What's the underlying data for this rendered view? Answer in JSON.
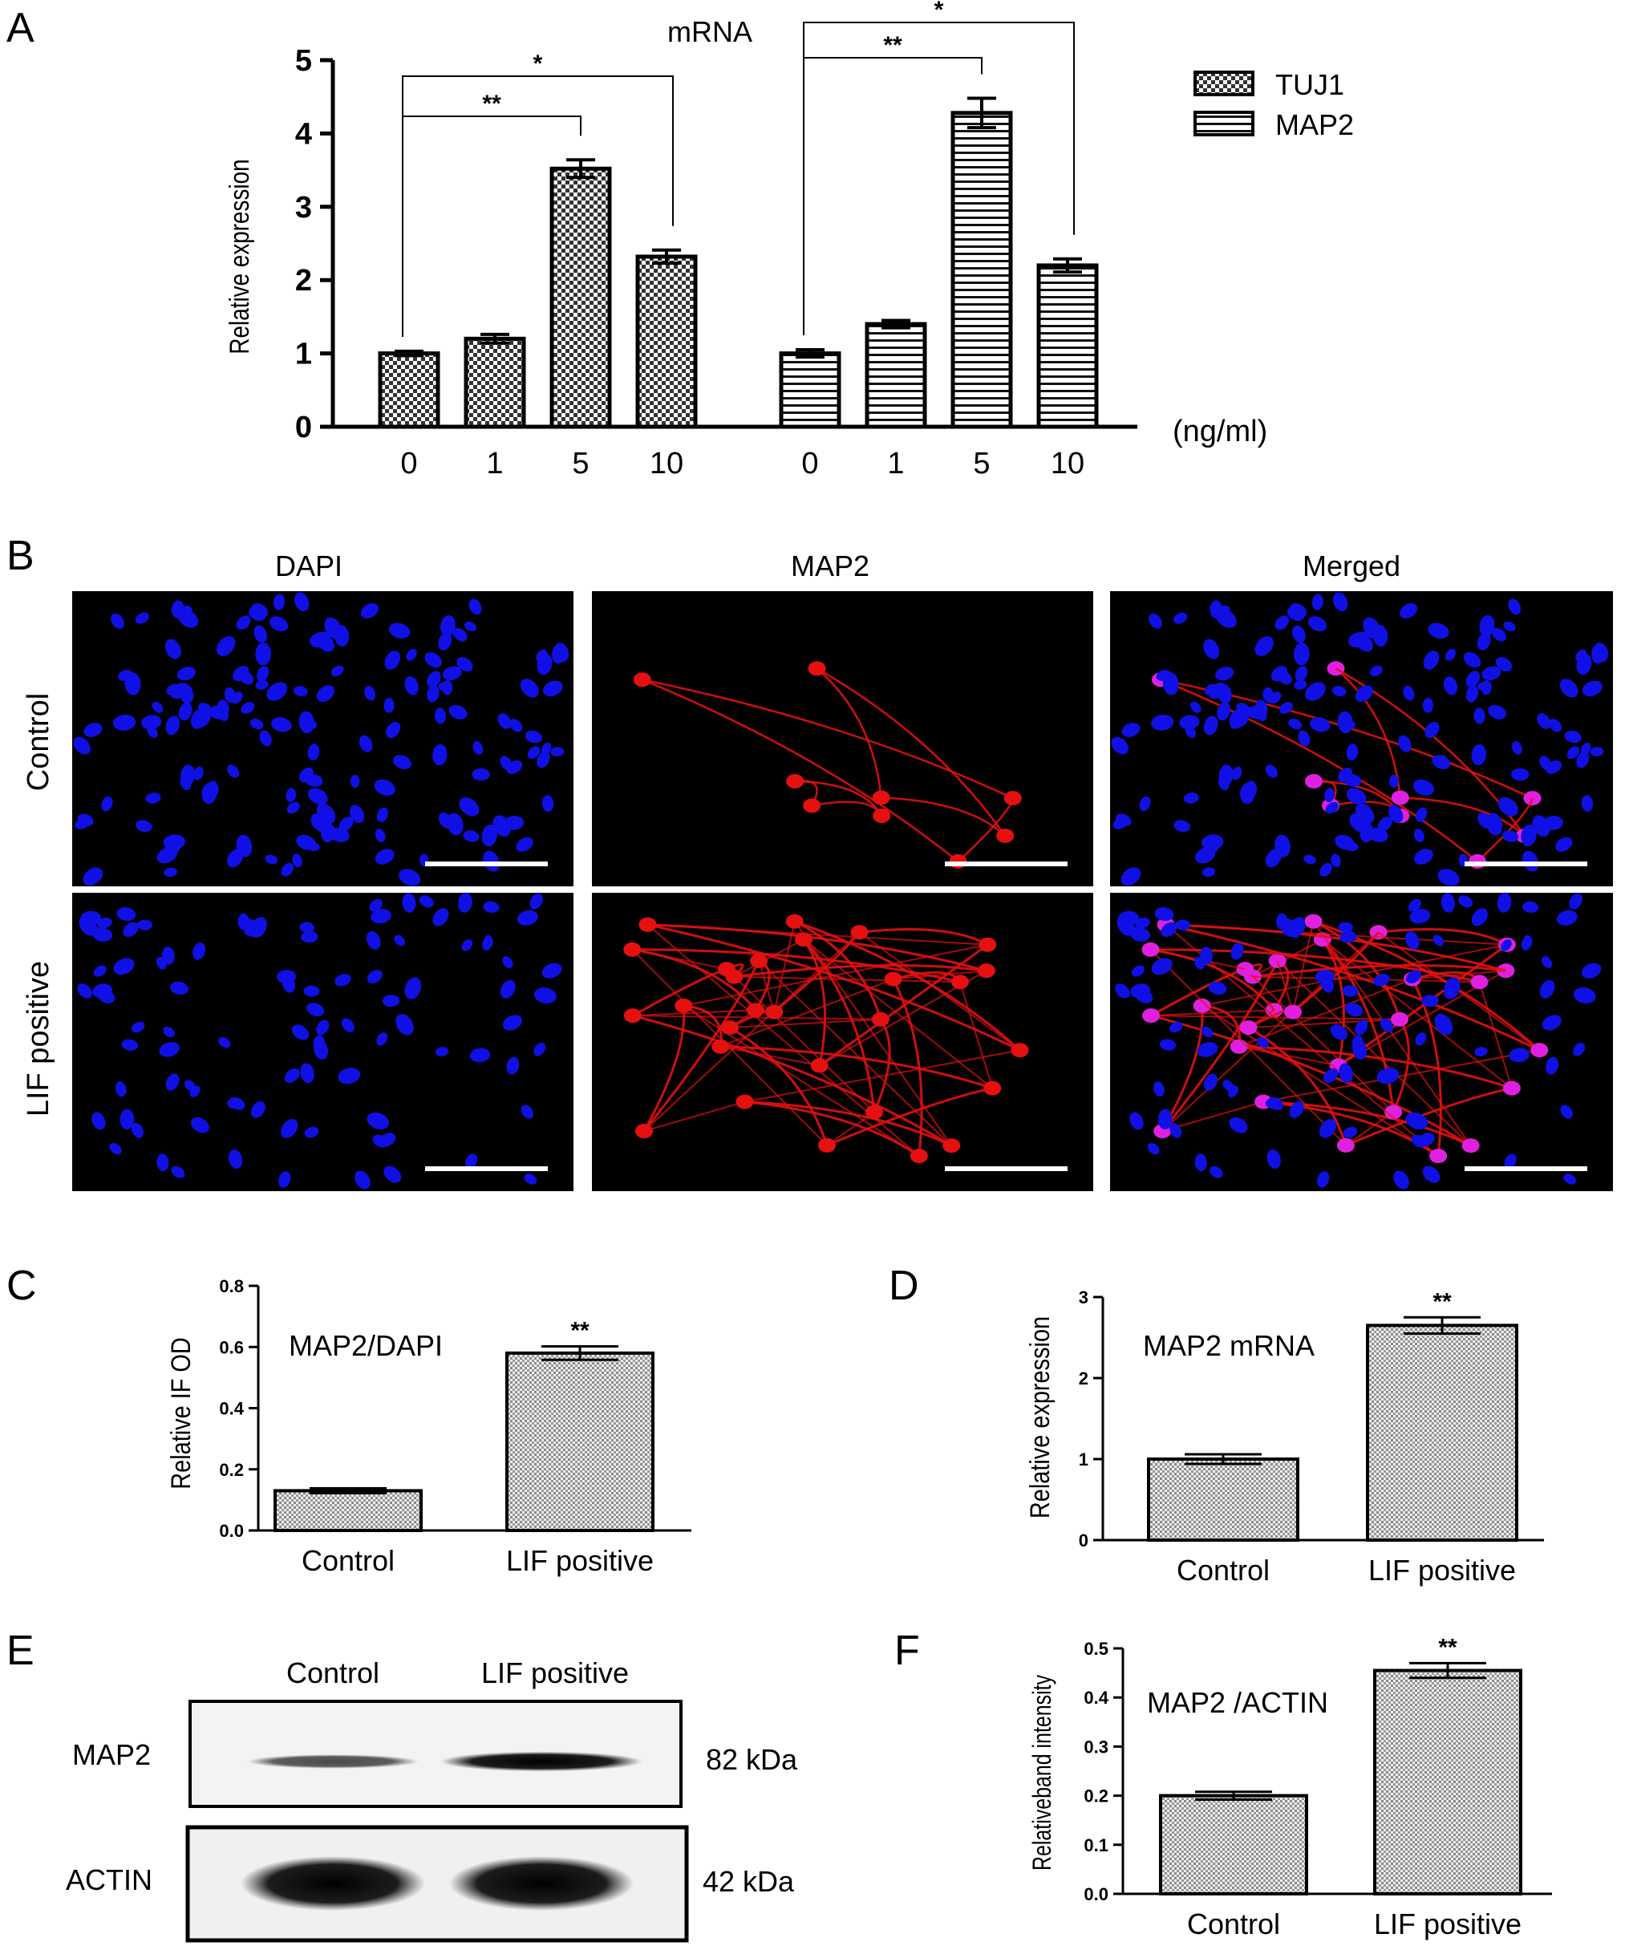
{
  "panels": {
    "A": {
      "letter": "A"
    },
    "B": {
      "letter": "B",
      "columns": [
        "DAPI",
        "MAP2",
        "Merged"
      ],
      "rows": [
        "Control",
        "LIF positive"
      ]
    },
    "C": {
      "letter": "C"
    },
    "D": {
      "letter": "D"
    },
    "E": {
      "letter": "E",
      "lane_labels": [
        "Control",
        "LIF positive"
      ],
      "bands": [
        {
          "label": "MAP2",
          "size": "82 kDa",
          "intensity": [
            0.35,
            0.85
          ]
        },
        {
          "label": "ACTIN",
          "size": "42 kDa",
          "intensity": [
            1.0,
            1.0
          ]
        }
      ]
    },
    "F": {
      "letter": "F"
    }
  },
  "colors": {
    "dapi": "#1010e6",
    "map2_stain": "#e61010",
    "merged_overlap": "#e020e0",
    "bar_edge": "#000000"
  },
  "chart_data": [
    {
      "id": "A",
      "type": "bar",
      "title": "mRNA",
      "ylabel": "Relative expression",
      "xlabel": "",
      "unit_label": "(ng/ml)",
      "ylim": [
        0,
        5
      ],
      "yticks": [
        "0",
        "1",
        "2",
        "3",
        "4",
        "5"
      ],
      "categories": [
        "0",
        "1",
        "5",
        "10"
      ],
      "legend_position": "top-right",
      "series": [
        {
          "name": "TUJ1",
          "pattern": "checker",
          "values": [
            1.0,
            1.2,
            3.52,
            2.32
          ],
          "errors": [
            0.03,
            0.06,
            0.12,
            0.09
          ]
        },
        {
          "name": "MAP2",
          "pattern": "hstripe",
          "values": [
            1.0,
            1.4,
            4.28,
            2.2
          ],
          "errors": [
            0.05,
            0.05,
            0.2,
            0.09
          ]
        }
      ],
      "significance": [
        {
          "series": 0,
          "from": 0,
          "to": 2,
          "label": "**"
        },
        {
          "series": 0,
          "from": 0,
          "to": 3,
          "label": "*"
        },
        {
          "series": 1,
          "from": 0,
          "to": 2,
          "label": "**"
        },
        {
          "series": 1,
          "from": 0,
          "to": 3,
          "label": "*"
        }
      ]
    },
    {
      "id": "C",
      "type": "bar",
      "annotation": "MAP2/DAPI",
      "ylabel": "Relative IF OD",
      "ylim": [
        0,
        0.8
      ],
      "yticks": [
        "0.0",
        "0.2",
        "0.4",
        "0.6",
        "0.8"
      ],
      "categories": [
        "Control",
        "LIF positive"
      ],
      "values": [
        0.13,
        0.58
      ],
      "errors": [
        0.008,
        0.022
      ],
      "stars": [
        "",
        "**"
      ]
    },
    {
      "id": "D",
      "type": "bar",
      "annotation": "MAP2 mRNA",
      "ylabel": "Relative expression",
      "ylim": [
        0,
        3
      ],
      "yticks": [
        "0",
        "1",
        "2",
        "3"
      ],
      "categories": [
        "Control",
        "LIF positive"
      ],
      "values": [
        1.0,
        2.65
      ],
      "errors": [
        0.06,
        0.1
      ],
      "stars": [
        "",
        "**"
      ]
    },
    {
      "id": "F",
      "type": "bar",
      "annotation": "MAP2 /ACTIN",
      "ylabel": "Relativeband intensity",
      "ylim": [
        0,
        0.5
      ],
      "yticks": [
        "0.0",
        "0.1",
        "0.2",
        "0.3",
        "0.4",
        "0.5"
      ],
      "categories": [
        "Control",
        "LIF positive"
      ],
      "values": [
        0.2,
        0.455
      ],
      "errors": [
        0.008,
        0.015
      ],
      "stars": [
        "",
        "**"
      ]
    }
  ]
}
